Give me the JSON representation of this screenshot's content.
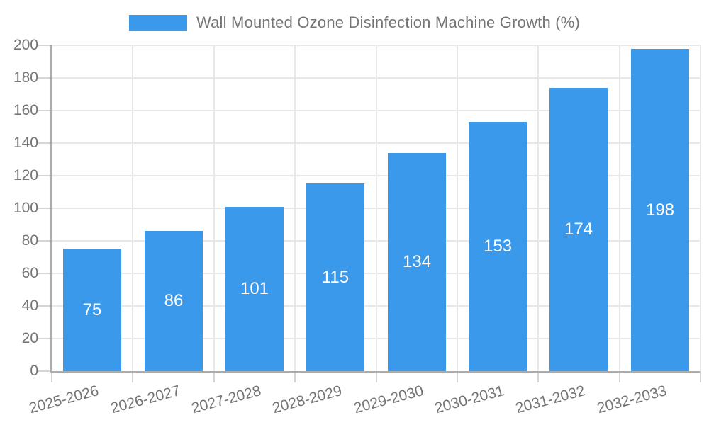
{
  "legend": {
    "label": "Wall Mounted Ozone Disinfection Machine Growth (%)"
  },
  "chart_data": {
    "type": "bar",
    "title": "Wall Mounted Ozone Disinfection Machine Growth (%)",
    "categories": [
      "2025-2026",
      "2026-2027",
      "2027-2028",
      "2028-2029",
      "2029-2030",
      "2030-2031",
      "2031-2032",
      "2032-2033"
    ],
    "values": [
      75,
      86,
      101,
      115,
      134,
      153,
      174,
      198
    ],
    "xlabel": "",
    "ylabel": "",
    "ylim": [
      0,
      200
    ],
    "ytick_step": 20,
    "grid": true,
    "legend_position": "top-center",
    "bar_value_labels": "inside-center",
    "x_tick_label_rotation_deg": -15,
    "colors": {
      "bar": "#3B99EC",
      "bar_label_text": "#FFFFFF",
      "axis_text": "#757575",
      "title_text": "#757575",
      "grid_line": "#E8E8E8",
      "axis_line": "#ACACAC",
      "tick_line": "#D5D5D5",
      "background": "#FFFFFF"
    }
  }
}
